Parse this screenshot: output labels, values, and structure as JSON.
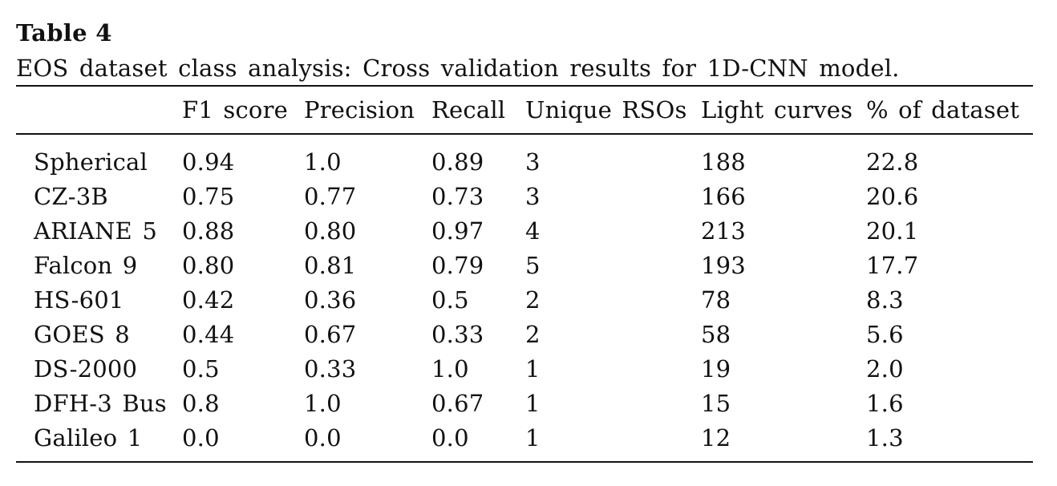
{
  "table": {
    "label": "Table 4",
    "caption": "EOS dataset class analysis: Cross validation results for 1D-CNN model.",
    "columns": [
      "",
      "F1 score",
      "Precision",
      "Recall",
      "Unique RSOs",
      "Light curves",
      "% of dataset"
    ],
    "rows": [
      [
        "Spherical",
        "0.94",
        "1.0",
        "0.89",
        "3",
        "188",
        "22.8"
      ],
      [
        "CZ-3B",
        "0.75",
        "0.77",
        "0.73",
        "3",
        "166",
        "20.6"
      ],
      [
        "ARIANE 5",
        "0.88",
        "0.80",
        "0.97",
        "4",
        "213",
        "20.1"
      ],
      [
        "Falcon 9",
        "0.80",
        "0.81",
        "0.79",
        "5",
        "193",
        "17.7"
      ],
      [
        "HS-601",
        "0.42",
        "0.36",
        "0.5",
        "2",
        "78",
        "8.3"
      ],
      [
        "GOES 8",
        "0.44",
        "0.67",
        "0.33",
        "2",
        "58",
        "5.6"
      ],
      [
        "DS-2000",
        "0.5",
        "0.33",
        "1.0",
        "1",
        "19",
        "2.0"
      ],
      [
        "DFH-3 Bus",
        "0.8",
        "1.0",
        "0.67",
        "1",
        "15",
        "1.6"
      ],
      [
        "Galileo 1",
        "0.0",
        "0.0",
        "0.0",
        "1",
        "12",
        "1.3"
      ]
    ]
  }
}
